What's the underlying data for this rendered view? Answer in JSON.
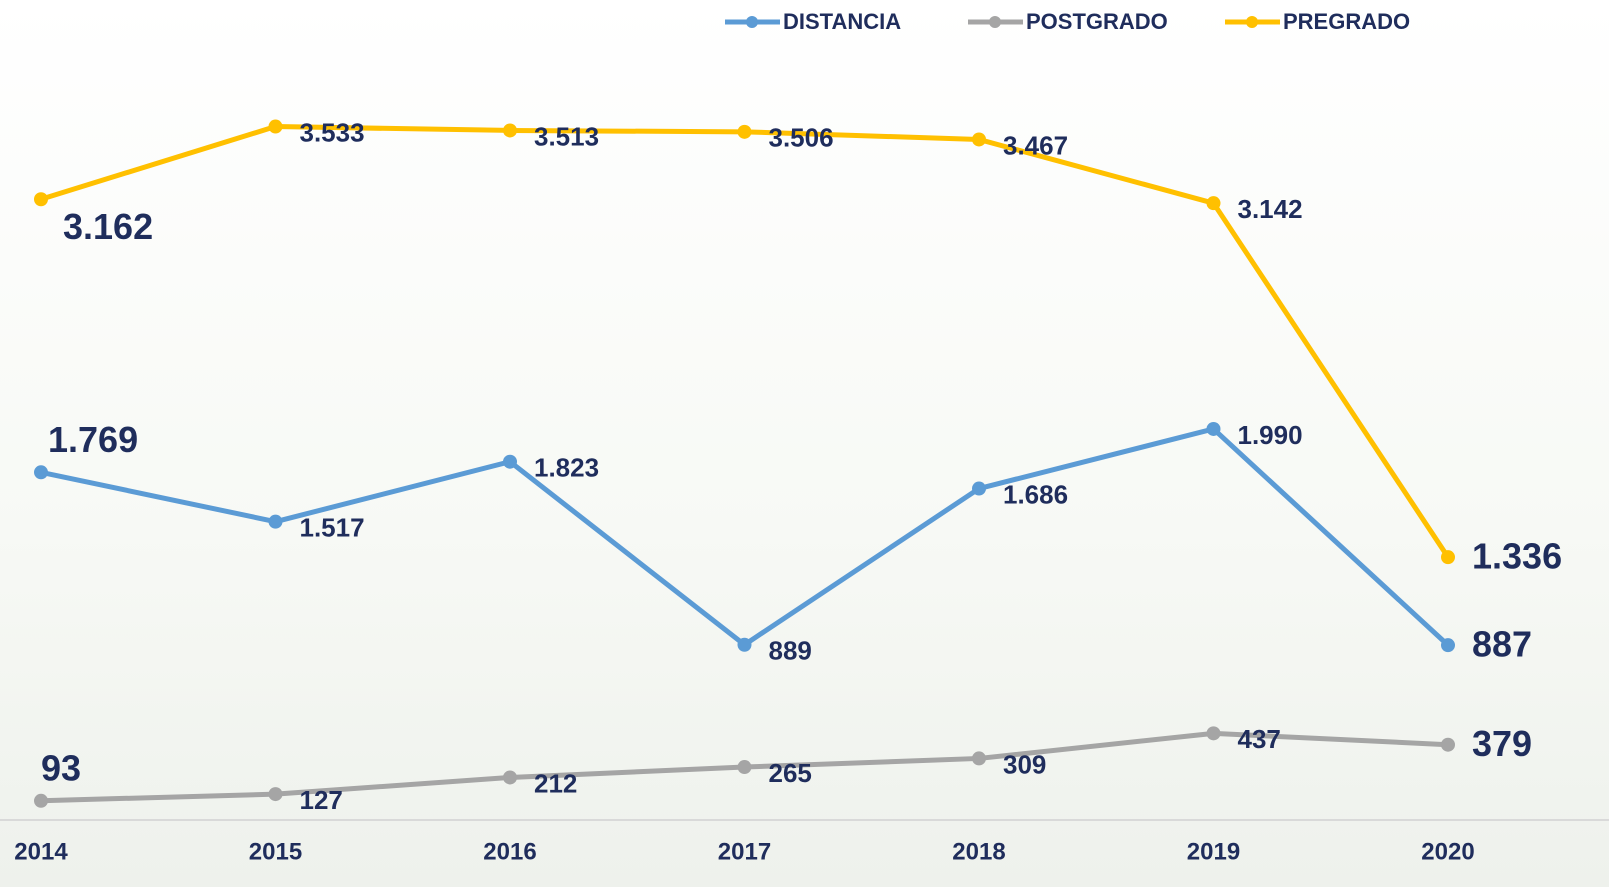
{
  "chart_data": {
    "type": "line",
    "categories": [
      "2014",
      "2015",
      "2016",
      "2017",
      "2018",
      "2019",
      "2020"
    ],
    "series": [
      {
        "name": "DISTANCIA",
        "color": "#5b9bd5",
        "values": [
          1769,
          1517,
          1823,
          889,
          1686,
          1990,
          887
        ],
        "value_labels": [
          "1.769",
          "1.517",
          "1.823",
          "889",
          "1.686",
          "1.990",
          "887"
        ]
      },
      {
        "name": "POSTGRADO",
        "color": "#a5a5a5",
        "values": [
          93,
          127,
          212,
          265,
          309,
          437,
          379
        ],
        "value_labels": [
          "93",
          "127",
          "212",
          "265",
          "309",
          "437",
          "379"
        ]
      },
      {
        "name": "PREGRADO",
        "color": "#ffc000",
        "values": [
          3162,
          3533,
          3513,
          3506,
          3467,
          3142,
          1336
        ],
        "value_labels": [
          "3.162",
          "3.533",
          "3.513",
          "3.506",
          "3.467",
          "3.142",
          "1.336"
        ]
      }
    ],
    "ylim": [
      0,
      4000
    ],
    "legend": "top"
  }
}
